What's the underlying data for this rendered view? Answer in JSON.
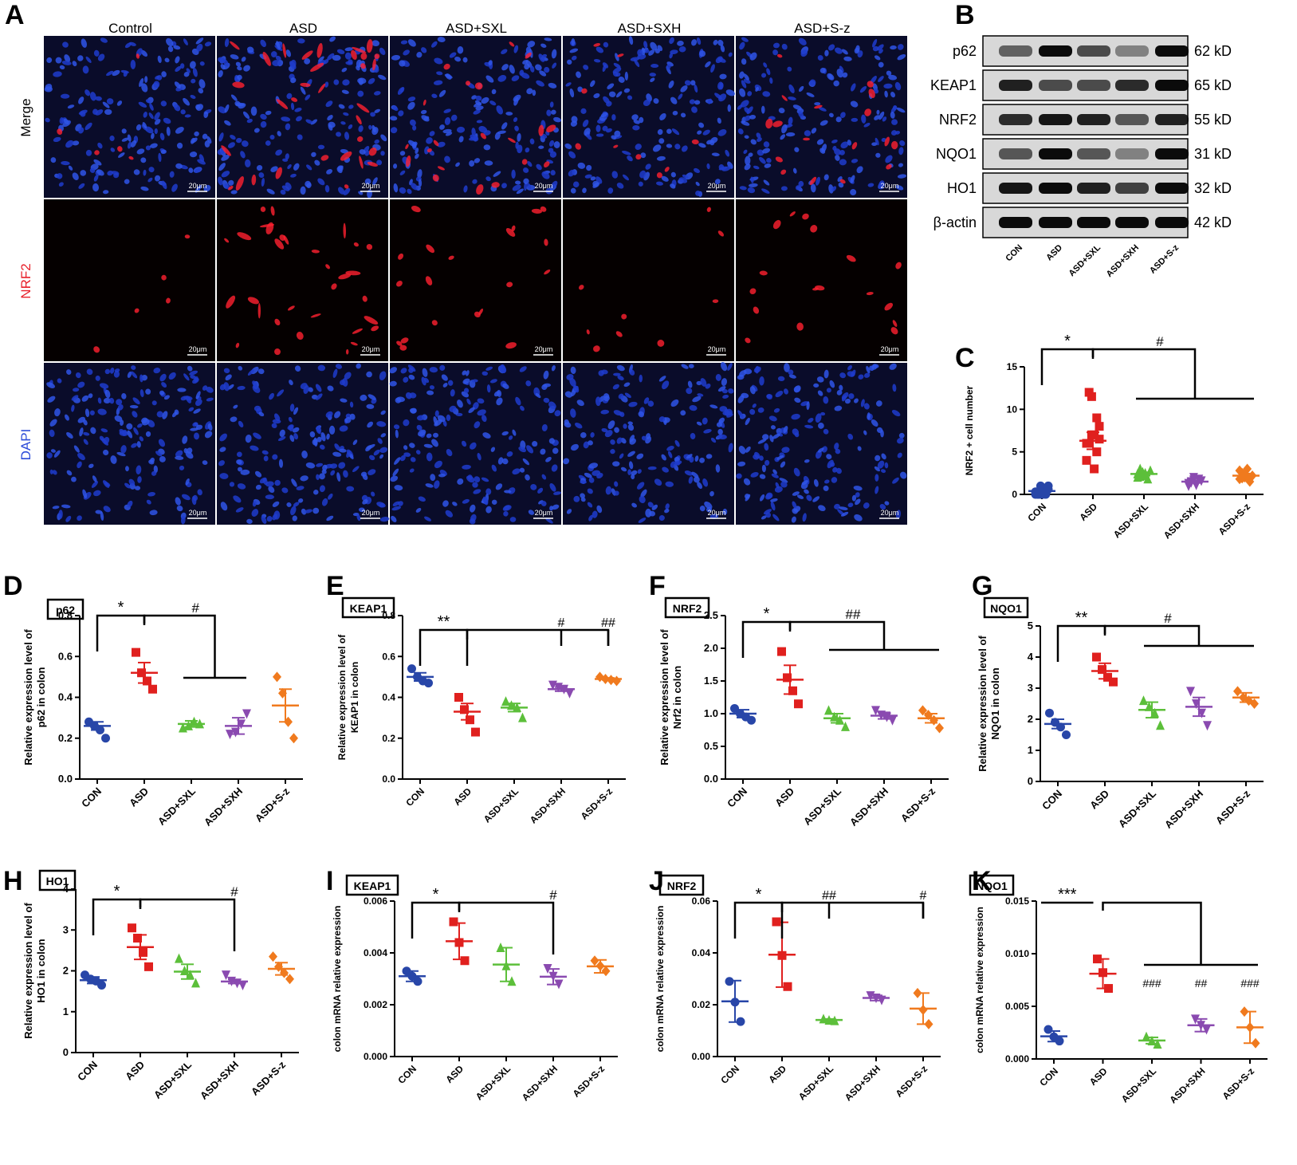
{
  "panels": {
    "A": "A",
    "B": "B",
    "C": "C",
    "D": "D",
    "E": "E",
    "F": "F",
    "G": "G",
    "H": "H",
    "I": "I",
    "J": "J",
    "K": "K"
  },
  "panel_a": {
    "columns": [
      "Control",
      "ASD",
      "ASD+SXL",
      "ASD+SXH",
      "ASD+S-z"
    ],
    "rows": [
      {
        "label": "Merge",
        "color": "#000000"
      },
      {
        "label": "NRF2",
        "color": "#e8202a"
      },
      {
        "label": "DAPI",
        "color": "#2c4bd8"
      }
    ],
    "scale_bar": "20μm"
  },
  "western_blot": {
    "proteins": [
      "p62",
      "KEAP1",
      "NRF2",
      "NQO1",
      "HO1",
      "β-actin"
    ],
    "sizes": [
      "62 kD",
      "65 kD",
      "55 kD",
      "31 kD",
      "32 kD",
      "42 kD"
    ],
    "lanes": [
      "CON",
      "ASD",
      "ASD+SXL",
      "ASD+SXH",
      "ASD+S-z"
    ],
    "band_intensity": [
      [
        0.55,
        0.95,
        0.65,
        0.4,
        0.95
      ],
      [
        0.85,
        0.65,
        0.65,
        0.8,
        0.95
      ],
      [
        0.8,
        0.9,
        0.85,
        0.6,
        0.85
      ],
      [
        0.6,
        0.95,
        0.6,
        0.4,
        0.95
      ],
      [
        0.9,
        0.95,
        0.85,
        0.7,
        0.95
      ],
      [
        0.95,
        0.95,
        0.95,
        0.95,
        0.95
      ]
    ]
  },
  "group_colors": [
    "#2846a8",
    "#e0201e",
    "#5cbf3a",
    "#8a4ab0",
    "#f07a1e"
  ],
  "chart_data": [
    {
      "panel": "C",
      "type": "scatter",
      "categories": [
        "CON",
        "ASD",
        "ASD+SXL",
        "ASD+SXH",
        "ASD+S-z"
      ],
      "ylabel": "NRF2 + cell number",
      "ylim": [
        0,
        15
      ],
      "yticks": [
        "0",
        "5",
        "10",
        "15"
      ],
      "tick_values": [
        0,
        5,
        10,
        15
      ],
      "means": [
        0.4,
        6.3,
        2.4,
        1.5,
        2.2
      ],
      "sems": [
        0.2,
        1.0,
        0.2,
        0.15,
        0.25
      ],
      "points": [
        [
          0.0,
          0.0,
          0.0,
          0.0,
          0.5,
          1.0,
          0.3,
          0.0,
          1.0,
          0.2,
          0.0,
          0.6
        ],
        [
          4.0,
          6.0,
          7.0,
          3.0,
          5.0,
          8.0,
          6.0,
          12.0,
          11.5,
          7.0,
          9.0,
          6.5
        ],
        [
          2.0,
          3.0,
          2.2,
          2.5,
          1.8,
          2.8,
          2.4,
          2.1,
          2.6,
          2.3
        ],
        [
          1.0,
          1.5,
          2.0,
          1.2,
          1.8,
          1.6,
          1.3,
          1.4,
          1.7,
          1.1
        ],
        [
          1.8,
          2.5,
          2.0,
          3.0,
          1.5,
          2.2,
          2.8,
          1.9,
          2.4,
          2.1
        ]
      ],
      "annotations": [
        "*",
        "#"
      ]
    },
    {
      "panel": "D",
      "type": "scatter",
      "box_label": "p62",
      "categories": [
        "CON",
        "ASD",
        "ASD+SXL",
        "ASD+SXH",
        "ASD+S-z"
      ],
      "ylabel": [
        "Relative expression level of",
        "p62 in colon"
      ],
      "ylim": [
        0,
        0.8
      ],
      "yticks": [
        "0.0",
        "0.2",
        "0.4",
        "0.6",
        "0.8"
      ],
      "tick_values": [
        0,
        0.2,
        0.4,
        0.6,
        0.8
      ],
      "means": [
        0.26,
        0.52,
        0.27,
        0.26,
        0.36
      ],
      "sems": [
        0.02,
        0.05,
        0.015,
        0.04,
        0.08
      ],
      "points": [
        [
          0.28,
          0.26,
          0.24,
          0.2
        ],
        [
          0.62,
          0.52,
          0.48,
          0.44
        ],
        [
          0.25,
          0.26,
          0.28,
          0.27
        ],
        [
          0.22,
          0.23,
          0.27,
          0.32
        ],
        [
          0.5,
          0.42,
          0.28,
          0.2
        ]
      ],
      "annotations": [
        "*",
        "#"
      ]
    },
    {
      "panel": "E",
      "type": "scatter",
      "box_label": "KEAP1",
      "categories": [
        "CON",
        "ASD",
        "ASD+SXL",
        "ASD+SXH",
        "ASD+S-z"
      ],
      "ylabel": [
        "Relative expression level of",
        "KEAP1 in colon"
      ],
      "ylim": [
        0,
        0.8
      ],
      "yticks": [
        "0.0",
        "0.2",
        "0.4",
        "0.6",
        "0.8"
      ],
      "tick_values": [
        0,
        0.2,
        0.4,
        0.6,
        0.8
      ],
      "means": [
        0.5,
        0.33,
        0.35,
        0.44,
        0.49
      ],
      "sems": [
        0.02,
        0.04,
        0.02,
        0.01,
        0.005
      ],
      "points": [
        [
          0.54,
          0.5,
          0.48,
          0.47
        ],
        [
          0.4,
          0.34,
          0.29,
          0.23
        ],
        [
          0.38,
          0.36,
          0.35,
          0.3
        ],
        [
          0.46,
          0.45,
          0.44,
          0.42
        ],
        [
          0.5,
          0.49,
          0.485,
          0.48
        ]
      ],
      "annotations": [
        "**",
        "#",
        "##"
      ]
    },
    {
      "panel": "F",
      "type": "scatter",
      "box_label": "NRF2",
      "categories": [
        "CON",
        "ASD",
        "ASD+SXL",
        "ASD+SXH",
        "ASD+S-z"
      ],
      "ylabel": [
        "Relative expression level of",
        "Nrf2 in colon"
      ],
      "ylim": [
        0,
        2.5
      ],
      "yticks": [
        "0.0",
        "0.5",
        "1.0",
        "1.5",
        "2.0",
        "2.5"
      ],
      "tick_values": [
        0,
        0.5,
        1.0,
        1.5,
        2.0,
        2.5
      ],
      "means": [
        1.0,
        1.52,
        0.93,
        0.97,
        0.93
      ],
      "sems": [
        0.06,
        0.22,
        0.07,
        0.05,
        0.07
      ],
      "points": [
        [
          1.08,
          1.0,
          0.95,
          0.9
        ],
        [
          1.95,
          1.55,
          1.35,
          1.15
        ],
        [
          1.05,
          0.95,
          0.9,
          0.8
        ],
        [
          1.05,
          0.98,
          0.95,
          0.9
        ],
        [
          1.05,
          0.98,
          0.9,
          0.78
        ]
      ],
      "annotations": [
        "*",
        "##"
      ]
    },
    {
      "panel": "G",
      "type": "scatter",
      "box_label": "NQO1",
      "categories": [
        "CON",
        "ASD",
        "ASD+SXL",
        "ASD+SXH",
        "ASD+S-z"
      ],
      "ylabel": [
        "Relative expression level of",
        "NQO1 in colon"
      ],
      "ylim": [
        0,
        5
      ],
      "yticks": [
        "0",
        "1",
        "2",
        "3",
        "4",
        "5"
      ],
      "tick_values": [
        0,
        1,
        2,
        3,
        4,
        5
      ],
      "means": [
        1.85,
        3.55,
        2.3,
        2.4,
        2.7
      ],
      "sems": [
        0.15,
        0.25,
        0.25,
        0.3,
        0.15
      ],
      "points": [
        [
          2.2,
          1.9,
          1.75,
          1.5
        ],
        [
          4.0,
          3.6,
          3.35,
          3.2
        ],
        [
          2.6,
          2.4,
          2.2,
          1.8
        ],
        [
          2.9,
          2.5,
          2.2,
          1.8
        ],
        [
          2.9,
          2.7,
          2.6,
          2.5
        ]
      ],
      "annotations": [
        "**",
        "#"
      ]
    },
    {
      "panel": "H",
      "type": "scatter",
      "box_label": "HO1",
      "categories": [
        "CON",
        "ASD",
        "ASD+SXL",
        "ASD+SXH",
        "ASD+S-z"
      ],
      "ylabel": [
        "Relative expression level of",
        "HO1 in colon"
      ],
      "ylim": [
        0,
        4
      ],
      "yticks": [
        "0",
        "1",
        "2",
        "3",
        "4"
      ],
      "tick_values": [
        0,
        1,
        2,
        3,
        4
      ],
      "means": [
        1.77,
        2.58,
        1.98,
        1.74,
        2.05
      ],
      "sems": [
        0.08,
        0.3,
        0.18,
        0.05,
        0.15
      ],
      "points": [
        [
          1.9,
          1.8,
          1.75,
          1.65
        ],
        [
          3.05,
          2.8,
          2.45,
          2.1
        ],
        [
          2.3,
          2.0,
          1.9,
          1.7
        ],
        [
          1.9,
          1.75,
          1.7,
          1.65
        ],
        [
          2.35,
          2.1,
          1.95,
          1.8
        ]
      ],
      "annotations": [
        "*",
        "#"
      ]
    },
    {
      "panel": "I",
      "type": "scatter",
      "box_label": "KEAP1",
      "categories": [
        "CON",
        "ASD",
        "ASD+SXL",
        "ASD+SXH",
        "ASD+S-z"
      ],
      "ylabel": [
        "colon mRNA relative expression"
      ],
      "ylim": [
        0,
        0.006
      ],
      "yticks": [
        "0.000",
        "0.002",
        "0.004",
        "0.006"
      ],
      "tick_values": [
        0,
        0.002,
        0.004,
        0.006
      ],
      "means": [
        0.0031,
        0.00445,
        0.00355,
        0.00308,
        0.00348
      ],
      "sems": [
        0.0002,
        0.0007,
        0.00065,
        0.0003,
        0.00025
      ],
      "points": [
        [
          0.0033,
          0.0031,
          0.0029
        ],
        [
          0.0052,
          0.0044,
          0.0037
        ],
        [
          0.0042,
          0.0035,
          0.0029
        ],
        [
          0.0034,
          0.0031,
          0.0028
        ],
        [
          0.0037,
          0.0035,
          0.0033
        ]
      ],
      "annotations": [
        "*",
        "#"
      ]
    },
    {
      "panel": "J",
      "type": "scatter",
      "box_label": "NRF2",
      "categories": [
        "CON",
        "ASD",
        "ASD+SXL",
        "ASD+SXH",
        "ASD+S-z"
      ],
      "ylabel": [
        "colon mRNA relative expression"
      ],
      "ylim": [
        0,
        0.06
      ],
      "yticks": [
        "0.00",
        "0.02",
        "0.04",
        "0.06"
      ],
      "tick_values": [
        0,
        0.02,
        0.04,
        0.06
      ],
      "means": [
        0.0213,
        0.0393,
        0.0141,
        0.0226,
        0.0185
      ],
      "sems": [
        0.008,
        0.0125,
        0.0004,
        0.001,
        0.006
      ],
      "points": [
        [
          0.029,
          0.021,
          0.0135
        ],
        [
          0.052,
          0.039,
          0.027
        ],
        [
          0.0145,
          0.014,
          0.0138
        ],
        [
          0.0235,
          0.0226,
          0.0218
        ],
        [
          0.0245,
          0.018,
          0.0125
        ]
      ],
      "annotations": [
        "*",
        "##",
        "#"
      ]
    },
    {
      "panel": "K",
      "type": "scatter",
      "box_label": "NQO1",
      "categories": [
        "CON",
        "ASD",
        "ASD+SXL",
        "ASD+SXH",
        "ASD+S-z"
      ],
      "ylabel": [
        "colon mRNA relative expression"
      ],
      "ylim": [
        0,
        0.015
      ],
      "yticks": [
        "0.000",
        "0.005",
        "0.010",
        "0.015"
      ],
      "tick_values": [
        0,
        0.005,
        0.01,
        0.015
      ],
      "means": [
        0.00215,
        0.0081,
        0.00175,
        0.0032,
        0.003
      ],
      "sems": [
        0.0005,
        0.0014,
        0.0003,
        0.0006,
        0.0015
      ],
      "points": [
        [
          0.0028,
          0.0021,
          0.0017
        ],
        [
          0.0095,
          0.0082,
          0.0067
        ],
        [
          0.0021,
          0.0017,
          0.0014
        ],
        [
          0.0038,
          0.0032,
          0.0028
        ],
        [
          0.0045,
          0.003,
          0.0015
        ]
      ],
      "annotations": [
        "***",
        "###",
        "##",
        "###"
      ]
    }
  ]
}
